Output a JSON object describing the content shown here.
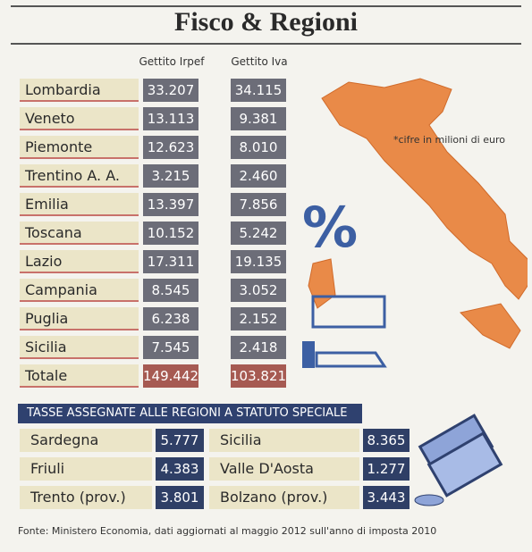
{
  "header": {
    "title": "Fisco & Regioni"
  },
  "table": {
    "columns": [
      "Gettito Irpef",
      "Gettito Iva"
    ],
    "rows": [
      [
        "Lombardia",
        "33.207",
        "34.115"
      ],
      [
        "Veneto",
        "13.113",
        "9.381"
      ],
      [
        "Piemonte",
        "12.623",
        "8.010"
      ],
      [
        "Trentino A. A.",
        "3.215",
        "2.460"
      ],
      [
        "Emilia",
        "13.397",
        "7.856"
      ],
      [
        "Toscana",
        "10.152",
        "5.242"
      ],
      [
        "Lazio",
        "17.311",
        "19.135"
      ],
      [
        "Campania",
        "8.545",
        "3.052"
      ],
      [
        "Puglia",
        "6.238",
        "2.152"
      ],
      [
        "Sicilia",
        "7.545",
        "2.418"
      ]
    ],
    "total": [
      "Totale",
      "149.442",
      "103.821"
    ]
  },
  "note": "*cifre in milioni di euro",
  "symbol": "%",
  "special": {
    "title": "TASSE ASSEGNATE ALLE REGIONI A STATUTO SPECIALE",
    "rows": [
      [
        "Sardegna",
        "5.777",
        "Sicilia",
        "8.365"
      ],
      [
        "Friuli",
        "4.383",
        "Valle D'Aosta",
        "1.277"
      ],
      [
        "Trento (prov.)",
        "3.801",
        "Bolzano (prov.)",
        "3.443"
      ]
    ]
  },
  "source": "Fonte: Ministero Economia, dati aggiornati al maggio 2012 sull'anno di imposta 2010"
}
